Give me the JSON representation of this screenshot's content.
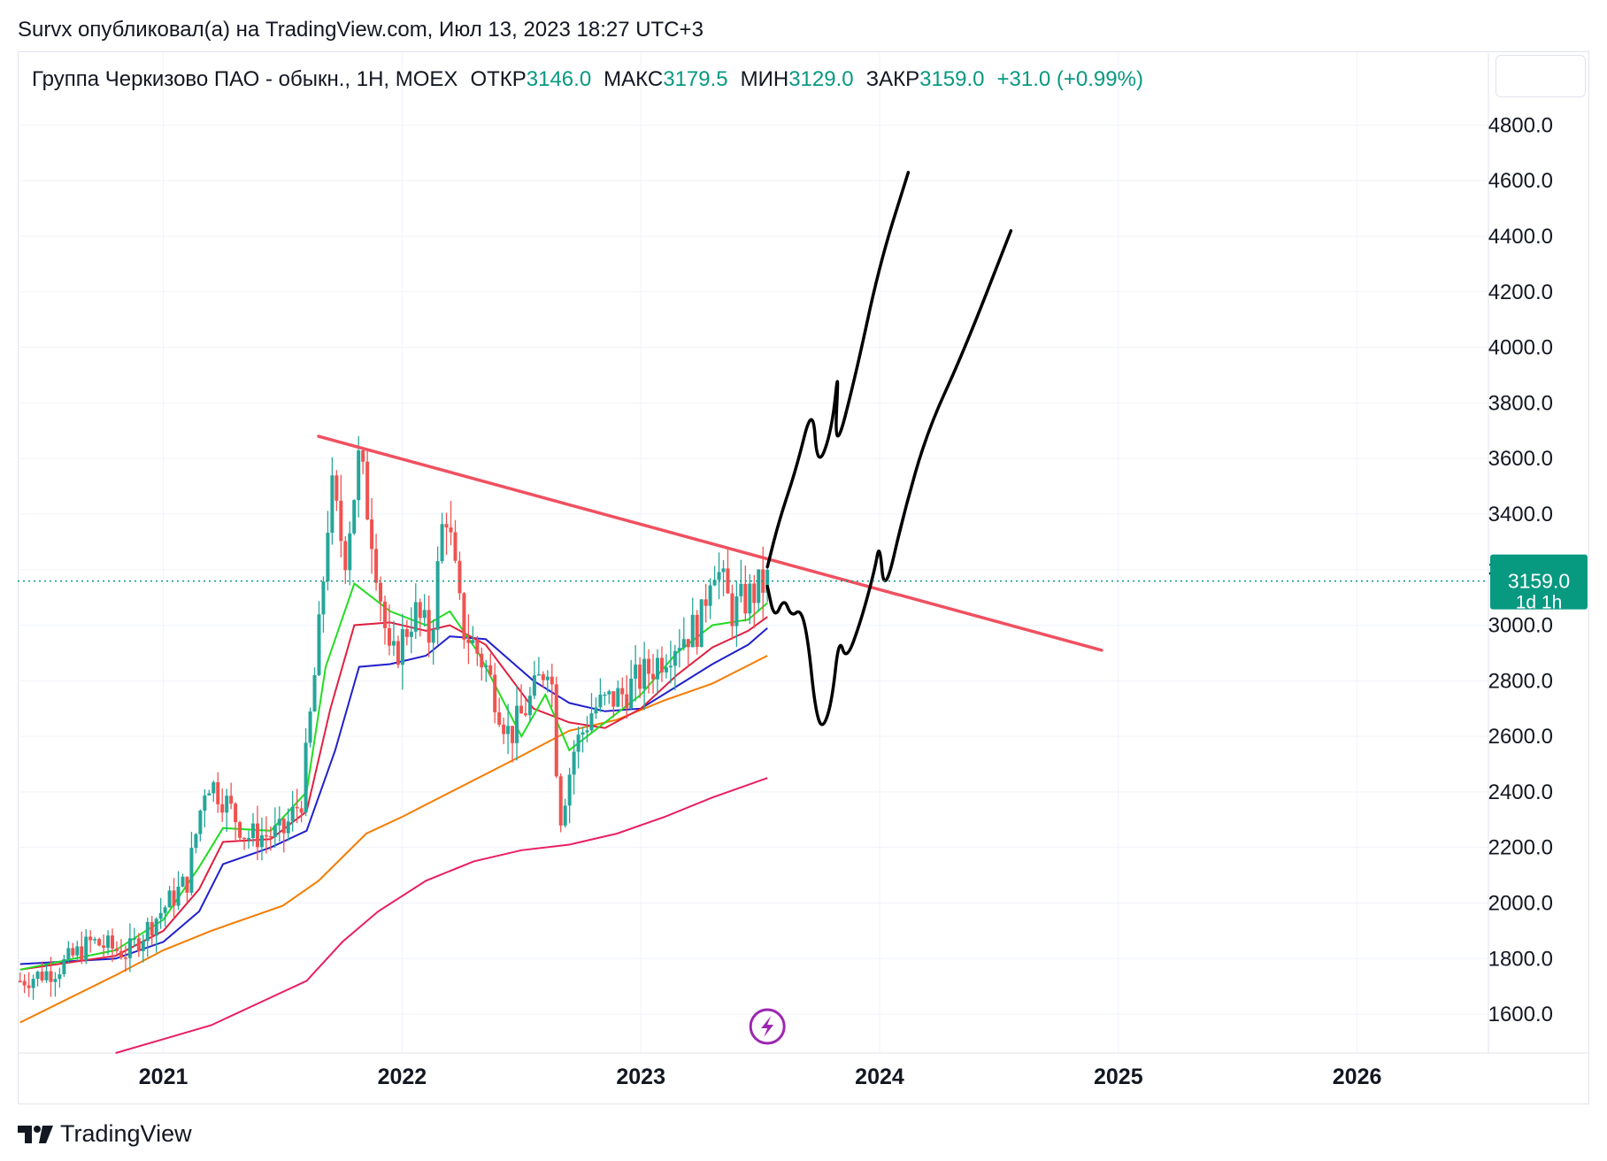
{
  "header": {
    "published_line": "Survx опубликовал(а) на TradingView.com, Июл 13, 2023 18:27 UTC+3"
  },
  "legend": {
    "symbol": "Группа Черкизово ПАО - обыкн., 1H, MOEX",
    "open_label": "ОТКР",
    "open_value": "3146.0",
    "high_label": "МАКС",
    "high_value": "3179.5",
    "low_label": "МИН",
    "low_value": "3129.0",
    "close_label": "ЗАКР",
    "close_value": "3159.0",
    "change": "+31.0 (+0.99%)"
  },
  "price_badge": {
    "price": "3159.0",
    "countdown": "1d 1h"
  },
  "footer": {
    "brand": "TradingView"
  },
  "colors": {
    "up": "#26a69a",
    "down": "#ef5350",
    "trendline": "#f05060",
    "ma_green": "#22dd22",
    "ma_red": "#e02040",
    "ma_blue": "#2020cc",
    "ma_orange": "#f57c00",
    "ma_pink": "#e91e63",
    "badge": "#089981",
    "grid": "#f0f3fa"
  },
  "chart_data": {
    "type": "candlestick",
    "y_ticks": [
      "4800.0",
      "4600.0",
      "4400.0",
      "4200.0",
      "4000.0",
      "3800.0",
      "3600.0",
      "3400.0",
      "3200.0",
      "3000.0",
      "2800.0",
      "2600.0",
      "2400.0",
      "2200.0",
      "2000.0",
      "1800.0",
      "1600.0"
    ],
    "x_ticks": [
      "2021",
      "2022",
      "2023",
      "2024",
      "2025",
      "2026"
    ],
    "ylim": [
      1460,
      4900
    ],
    "xlim": [
      2020.39,
      2026.55
    ],
    "last_price": 3159.0,
    "price_series": [
      {
        "t": 2020.4,
        "c": 1720
      },
      {
        "t": 2020.55,
        "c": 1760
      },
      {
        "t": 2020.7,
        "c": 1860
      },
      {
        "t": 2020.85,
        "c": 1820
      },
      {
        "t": 2021.0,
        "c": 1980
      },
      {
        "t": 2021.1,
        "c": 2080
      },
      {
        "t": 2021.18,
        "c": 2450
      },
      {
        "t": 2021.25,
        "c": 2380
      },
      {
        "t": 2021.35,
        "c": 2240
      },
      {
        "t": 2021.5,
        "c": 2250
      },
      {
        "t": 2021.58,
        "c": 2380
      },
      {
        "t": 2021.65,
        "c": 2950
      },
      {
        "t": 2021.7,
        "c": 3500
      },
      {
        "t": 2021.76,
        "c": 3250
      },
      {
        "t": 2021.82,
        "c": 3600
      },
      {
        "t": 2021.88,
        "c": 3300
      },
      {
        "t": 2021.95,
        "c": 2850
      },
      {
        "t": 2022.05,
        "c": 3050
      },
      {
        "t": 2022.12,
        "c": 2950
      },
      {
        "t": 2022.18,
        "c": 3450
      },
      {
        "t": 2022.25,
        "c": 3000
      },
      {
        "t": 2022.35,
        "c": 2850
      },
      {
        "t": 2022.45,
        "c": 2600
      },
      {
        "t": 2022.55,
        "c": 2750
      },
      {
        "t": 2022.62,
        "c": 2900
      },
      {
        "t": 2022.66,
        "c": 2300
      },
      {
        "t": 2022.72,
        "c": 2550
      },
      {
        "t": 2022.8,
        "c": 2700
      },
      {
        "t": 2022.92,
        "c": 2750
      },
      {
        "t": 2023.05,
        "c": 2850
      },
      {
        "t": 2023.15,
        "c": 2950
      },
      {
        "t": 2023.25,
        "c": 3000
      },
      {
        "t": 2023.3,
        "c": 3250
      },
      {
        "t": 2023.38,
        "c": 3050
      },
      {
        "t": 2023.45,
        "c": 3100
      },
      {
        "t": 2023.53,
        "c": 3159
      }
    ],
    "moving_averages": [
      {
        "color": "#22dd22",
        "points": [
          [
            2020.4,
            1760
          ],
          [
            2020.8,
            1830
          ],
          [
            2021.0,
            1940
          ],
          [
            2021.15,
            2130
          ],
          [
            2021.25,
            2270
          ],
          [
            2021.45,
            2260
          ],
          [
            2021.6,
            2400
          ],
          [
            2021.68,
            2850
          ],
          [
            2021.8,
            3150
          ],
          [
            2021.95,
            3050
          ],
          [
            2022.1,
            3000
          ],
          [
            2022.2,
            3050
          ],
          [
            2022.32,
            2900
          ],
          [
            2022.5,
            2600
          ],
          [
            2022.6,
            2750
          ],
          [
            2022.7,
            2550
          ],
          [
            2022.85,
            2650
          ],
          [
            2023.0,
            2750
          ],
          [
            2023.15,
            2900
          ],
          [
            2023.3,
            3000
          ],
          [
            2023.45,
            3020
          ],
          [
            2023.53,
            3080
          ]
        ]
      },
      {
        "color": "#e02040",
        "points": [
          [
            2020.4,
            1760
          ],
          [
            2020.8,
            1810
          ],
          [
            2021.0,
            1900
          ],
          [
            2021.15,
            2050
          ],
          [
            2021.25,
            2220
          ],
          [
            2021.45,
            2230
          ],
          [
            2021.6,
            2330
          ],
          [
            2021.7,
            2700
          ],
          [
            2021.8,
            3000
          ],
          [
            2021.95,
            3010
          ],
          [
            2022.1,
            2980
          ],
          [
            2022.2,
            3000
          ],
          [
            2022.35,
            2930
          ],
          [
            2022.55,
            2700
          ],
          [
            2022.7,
            2650
          ],
          [
            2022.85,
            2630
          ],
          [
            2023.0,
            2700
          ],
          [
            2023.15,
            2820
          ],
          [
            2023.3,
            2920
          ],
          [
            2023.45,
            2980
          ],
          [
            2023.53,
            3030
          ]
        ]
      },
      {
        "color": "#2020cc",
        "points": [
          [
            2020.4,
            1780
          ],
          [
            2020.8,
            1800
          ],
          [
            2021.0,
            1860
          ],
          [
            2021.15,
            1970
          ],
          [
            2021.25,
            2140
          ],
          [
            2021.45,
            2200
          ],
          [
            2021.6,
            2260
          ],
          [
            2021.72,
            2550
          ],
          [
            2021.82,
            2850
          ],
          [
            2021.95,
            2860
          ],
          [
            2022.1,
            2890
          ],
          [
            2022.2,
            2960
          ],
          [
            2022.35,
            2950
          ],
          [
            2022.55,
            2800
          ],
          [
            2022.7,
            2720
          ],
          [
            2022.85,
            2690
          ],
          [
            2023.0,
            2700
          ],
          [
            2023.15,
            2780
          ],
          [
            2023.3,
            2860
          ],
          [
            2023.45,
            2930
          ],
          [
            2023.53,
            2990
          ]
        ]
      },
      {
        "color": "#f57c00",
        "points": [
          [
            2020.4,
            1570
          ],
          [
            2020.8,
            1740
          ],
          [
            2021.0,
            1830
          ],
          [
            2021.2,
            1900
          ],
          [
            2021.5,
            1990
          ],
          [
            2021.65,
            2080
          ],
          [
            2021.85,
            2250
          ],
          [
            2022.0,
            2310
          ],
          [
            2022.25,
            2420
          ],
          [
            2022.5,
            2530
          ],
          [
            2022.7,
            2620
          ],
          [
            2022.9,
            2660
          ],
          [
            2023.1,
            2730
          ],
          [
            2023.3,
            2790
          ],
          [
            2023.53,
            2890
          ]
        ]
      },
      {
        "color": "#e91e63",
        "points": [
          [
            2020.8,
            1460
          ],
          [
            2021.0,
            1510
          ],
          [
            2021.2,
            1560
          ],
          [
            2021.4,
            1640
          ],
          [
            2021.6,
            1720
          ],
          [
            2021.75,
            1860
          ],
          [
            2021.9,
            1970
          ],
          [
            2022.1,
            2080
          ],
          [
            2022.3,
            2150
          ],
          [
            2022.5,
            2190
          ],
          [
            2022.7,
            2210
          ],
          [
            2022.9,
            2250
          ],
          [
            2023.1,
            2310
          ],
          [
            2023.3,
            2380
          ],
          [
            2023.53,
            2450
          ]
        ]
      }
    ],
    "trendline": [
      [
        2021.65,
        3680
      ],
      [
        2024.93,
        2910
      ]
    ],
    "drawings": [
      [
        [
          2023.53,
          3210
        ],
        [
          2023.58,
          3380
        ],
        [
          2023.65,
          3560
        ],
        [
          2023.72,
          3800
        ],
        [
          2023.74,
          3560
        ],
        [
          2023.8,
          3700
        ],
        [
          2023.83,
          3950
        ],
        [
          2023.81,
          3600
        ],
        [
          2023.9,
          3900
        ],
        [
          2024.0,
          4300
        ],
        [
          2024.12,
          4630
        ]
      ],
      [
        [
          2023.53,
          3140
        ],
        [
          2023.56,
          3020
        ],
        [
          2023.6,
          3100
        ],
        [
          2023.63,
          3030
        ],
        [
          2023.67,
          3060
        ],
        [
          2023.7,
          2950
        ],
        [
          2023.73,
          2700
        ],
        [
          2023.76,
          2620
        ],
        [
          2023.8,
          2720
        ],
        [
          2023.83,
          2960
        ],
        [
          2023.86,
          2870
        ],
        [
          2023.92,
          3010
        ],
        [
          2023.98,
          3200
        ],
        [
          2024.0,
          3300
        ],
        [
          2024.02,
          3100
        ],
        [
          2024.1,
          3400
        ],
        [
          2024.2,
          3700
        ],
        [
          2024.35,
          3980
        ],
        [
          2024.55,
          4420
        ]
      ]
    ]
  }
}
